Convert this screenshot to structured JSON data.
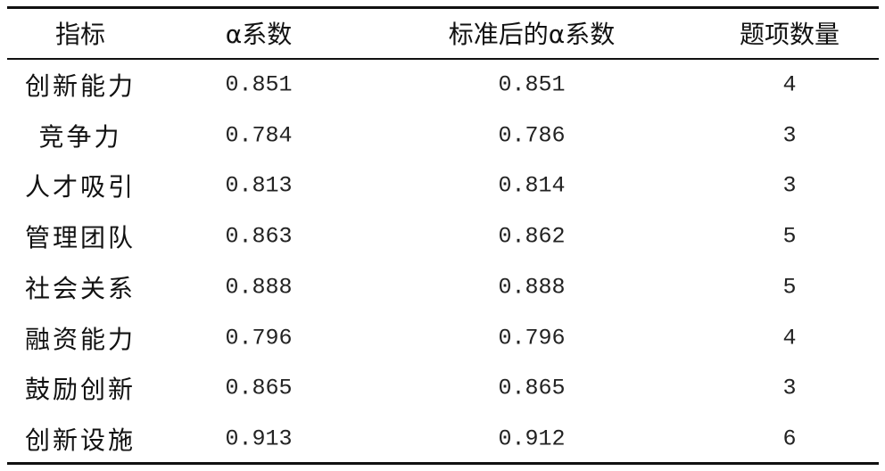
{
  "table": {
    "header": [
      "指标",
      "α系数",
      "标准后的α系数",
      "题项数量"
    ],
    "rows": [
      [
        "创新能力",
        0.851,
        0.851,
        4
      ],
      [
        "竞争力",
        0.784,
        0.786,
        3
      ],
      [
        "人才吸引",
        0.813,
        0.814,
        3
      ],
      [
        "管理团队",
        0.863,
        0.862,
        5
      ],
      [
        "社会关系",
        0.888,
        0.888,
        5
      ],
      [
        "融资能力",
        0.796,
        0.796,
        4
      ],
      [
        "鼓励创新",
        0.865,
        0.865,
        3
      ],
      [
        "创新设施",
        0.913,
        0.912,
        6
      ]
    ]
  }
}
